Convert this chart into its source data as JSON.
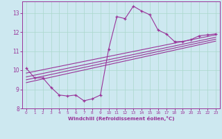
{
  "xlabel": "Windchill (Refroidissement éolien,°C)",
  "background_color": "#cde8f0",
  "line_color": "#993399",
  "xlim": [
    -0.5,
    23.5
  ],
  "ylim": [
    8.0,
    13.6
  ],
  "xticks": [
    0,
    1,
    2,
    3,
    4,
    5,
    6,
    7,
    8,
    9,
    10,
    11,
    12,
    13,
    14,
    15,
    16,
    17,
    18,
    19,
    20,
    21,
    22,
    23
  ],
  "yticks": [
    8,
    9,
    10,
    11,
    12,
    13
  ],
  "grid_color": "#aad8cc",
  "main_x": [
    0,
    1,
    2,
    3,
    4,
    5,
    6,
    7,
    8,
    9,
    10,
    11,
    12,
    13,
    14,
    15,
    16,
    17,
    18,
    19,
    20,
    21,
    22,
    23
  ],
  "main_y": [
    10.1,
    9.6,
    9.6,
    9.1,
    8.7,
    8.65,
    8.7,
    8.4,
    8.5,
    8.7,
    11.1,
    12.8,
    12.7,
    13.35,
    13.1,
    12.9,
    12.1,
    11.9,
    11.5,
    11.5,
    11.6,
    11.8,
    11.85,
    11.9
  ],
  "line2_x": [
    0,
    23
  ],
  "line2_y": [
    9.85,
    11.85
  ],
  "line3_x": [
    0,
    23
  ],
  "line3_y": [
    9.65,
    11.72
  ],
  "line4_x": [
    0,
    23
  ],
  "line4_y": [
    9.5,
    11.62
  ],
  "line5_x": [
    0,
    23
  ],
  "line5_y": [
    9.35,
    11.52
  ]
}
